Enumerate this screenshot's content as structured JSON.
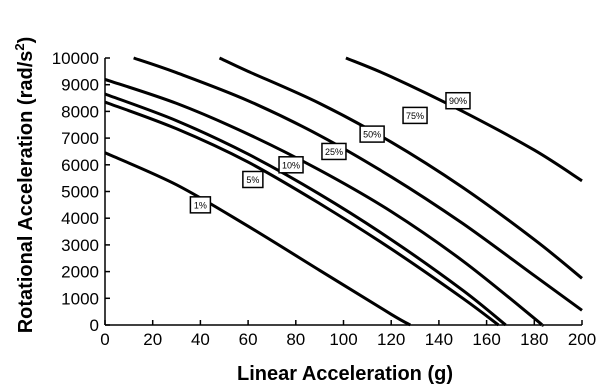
{
  "chart_data": {
    "type": "line",
    "xlabel": "Linear Acceleration (g)",
    "ylabel_main": "Rotational Acceleration (rad/s",
    "ylabel_sup": "2",
    "ylabel_end": ")",
    "xlim": [
      0,
      200
    ],
    "ylim": [
      0,
      10000
    ],
    "x_ticks": [
      "0",
      "20",
      "40",
      "60",
      "80",
      "100",
      "120",
      "140",
      "160",
      "180",
      "200"
    ],
    "y_ticks": [
      "0",
      "1000",
      "2000",
      "3000",
      "4000",
      "5000",
      "6000",
      "7000",
      "8000",
      "9000",
      "10000"
    ],
    "series": [
      {
        "name": "1%",
        "x": [
          0,
          30,
          60,
          90,
          120,
          128
        ],
        "y": [
          6450,
          5250,
          3700,
          2050,
          400,
          0
        ],
        "label_at": [
          40,
          4500
        ]
      },
      {
        "name": "5%",
        "x": [
          0,
          30,
          60,
          90,
          120,
          150,
          165
        ],
        "y": [
          8350,
          7350,
          6100,
          4550,
          2850,
          1000,
          0
        ],
        "label_at": [
          62,
          5450
        ]
      },
      {
        "name": "10%",
        "x": [
          0,
          30,
          60,
          90,
          120,
          150,
          168
        ],
        "y": [
          8650,
          7650,
          6400,
          4900,
          3200,
          1300,
          0
        ],
        "label_at": [
          78,
          6000
        ]
      },
      {
        "name": "25%",
        "x": [
          0,
          30,
          60,
          90,
          120,
          150,
          180,
          183
        ],
        "y": [
          9200,
          8300,
          7150,
          5800,
          4250,
          2400,
          250,
          0
        ],
        "label_at": [
          96,
          6500
        ]
      },
      {
        "name": "50%",
        "x": [
          12,
          30,
          60,
          90,
          120,
          150,
          180,
          200
        ],
        "y": [
          10000,
          9450,
          8400,
          7100,
          5550,
          3800,
          1850,
          550
        ],
        "label_at": [
          112,
          7150
        ]
      },
      {
        "name": "75%",
        "x": [
          48,
          60,
          90,
          120,
          150,
          180,
          200
        ],
        "y": [
          10000,
          9500,
          8300,
          6850,
          5150,
          3200,
          1750
        ],
        "label_at": [
          130,
          7850
        ]
      },
      {
        "name": "90%",
        "x": [
          101,
          120,
          150,
          180,
          200
        ],
        "y": [
          10000,
          9300,
          8000,
          6550,
          5400
        ],
        "label_at": [
          148,
          8400
        ]
      }
    ]
  }
}
